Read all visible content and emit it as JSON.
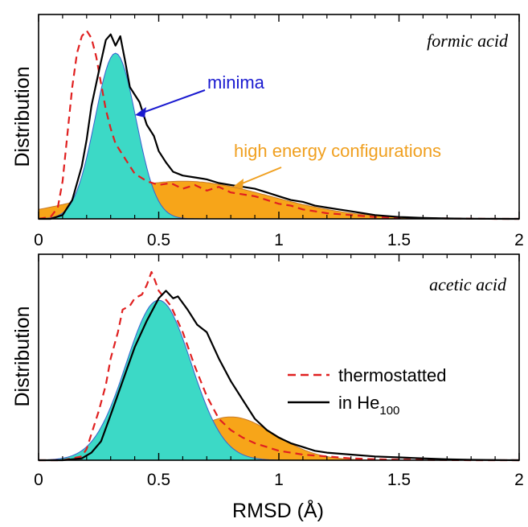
{
  "figure": {
    "xlabel": "RMSD (Å)",
    "colors": {
      "minima_fill": "#3cd9c6",
      "minima_line": "#3a5fd0",
      "high_energy_fill": "#f7a519",
      "high_energy_line": "#c87a2a",
      "thermostatted": "#e02020",
      "he100": "#000000",
      "minima_arrow": "#1a1ad0",
      "high_energy_arrow": "#f0a020"
    },
    "legend": {
      "thermostatted": "thermostatted",
      "he100_main": "in He",
      "he100_sub": "100"
    }
  },
  "chart_data": [
    {
      "type": "area",
      "panel_label": "formic acid",
      "ylabel": "Distribution",
      "xlabel": "",
      "xlim": [
        0,
        2
      ],
      "x_ticks": [
        "0",
        "0.5",
        "1",
        "1.5",
        "2"
      ],
      "y_ticks": "none",
      "grid": false,
      "annotations": [
        {
          "text": "minima"
        },
        {
          "text": "high energy configurations"
        }
      ],
      "series": [
        {
          "name": "minima",
          "kind": "gaussian-fill",
          "center": 0.32,
          "sigma": 0.085,
          "height": 0.88
        },
        {
          "name": "high energy configurations",
          "kind": "gaussian-fill",
          "center": 0.6,
          "sigma": 0.36,
          "height": 0.2
        },
        {
          "name": "thermostatted",
          "kind": "line",
          "x": [
            0.0,
            0.05,
            0.08,
            0.1,
            0.12,
            0.14,
            0.16,
            0.18,
            0.2,
            0.22,
            0.24,
            0.26,
            0.28,
            0.3,
            0.32,
            0.35,
            0.38,
            0.4,
            0.45,
            0.5,
            0.55,
            0.6,
            0.65,
            0.7,
            0.75,
            0.8,
            0.85,
            0.9,
            0.95,
            1.0,
            1.05,
            1.1,
            1.15,
            1.2,
            1.3,
            1.4,
            1.5,
            1.6,
            1.7,
            1.8,
            1.9,
            2.0
          ],
          "y": [
            0.0,
            0.01,
            0.06,
            0.2,
            0.45,
            0.7,
            0.88,
            0.97,
            1.0,
            0.96,
            0.86,
            0.72,
            0.58,
            0.48,
            0.4,
            0.34,
            0.28,
            0.24,
            0.2,
            0.18,
            0.19,
            0.16,
            0.18,
            0.15,
            0.17,
            0.14,
            0.13,
            0.12,
            0.1,
            0.08,
            0.07,
            0.05,
            0.04,
            0.03,
            0.02,
            0.01,
            0.005,
            0.003,
            0.002,
            0.001,
            0.0,
            0.0
          ]
        },
        {
          "name": "in He100",
          "kind": "line",
          "x": [
            0.0,
            0.05,
            0.1,
            0.14,
            0.18,
            0.2,
            0.22,
            0.25,
            0.28,
            0.3,
            0.32,
            0.34,
            0.36,
            0.38,
            0.4,
            0.42,
            0.45,
            0.48,
            0.5,
            0.53,
            0.56,
            0.6,
            0.65,
            0.7,
            0.75,
            0.8,
            0.85,
            0.9,
            0.95,
            1.0,
            1.05,
            1.1,
            1.15,
            1.2,
            1.25,
            1.3,
            1.35,
            1.4,
            1.5,
            1.6,
            1.7,
            1.8,
            2.0
          ],
          "y": [
            0.0,
            0.0,
            0.02,
            0.1,
            0.28,
            0.42,
            0.6,
            0.78,
            0.95,
            0.98,
            0.92,
            0.97,
            0.84,
            0.7,
            0.66,
            0.62,
            0.5,
            0.44,
            0.36,
            0.3,
            0.25,
            0.23,
            0.22,
            0.21,
            0.19,
            0.18,
            0.17,
            0.16,
            0.14,
            0.12,
            0.1,
            0.09,
            0.07,
            0.06,
            0.05,
            0.04,
            0.03,
            0.02,
            0.01,
            0.005,
            0.002,
            0.001,
            0.0
          ]
        }
      ]
    },
    {
      "type": "area",
      "panel_label": "acetic acid",
      "ylabel": "Distribution",
      "xlabel": "RMSD (Å)",
      "xlim": [
        0,
        2
      ],
      "x_ticks": [
        "0",
        "0.5",
        "1",
        "1.5",
        "2"
      ],
      "y_ticks": "none",
      "grid": false,
      "legend_placement": "right",
      "series": [
        {
          "name": "minima",
          "kind": "gaussian-fill",
          "center": 0.5,
          "sigma": 0.135,
          "height": 0.85
        },
        {
          "name": "high energy configurations",
          "kind": "gaussian-fill",
          "center": 0.8,
          "sigma": 0.18,
          "height": 0.23
        },
        {
          "name": "thermostatted",
          "kind": "line",
          "x": [
            0.0,
            0.1,
            0.18,
            0.2,
            0.22,
            0.25,
            0.28,
            0.3,
            0.33,
            0.35,
            0.38,
            0.4,
            0.43,
            0.45,
            0.47,
            0.48,
            0.5,
            0.55,
            0.6,
            0.65,
            0.7,
            0.75,
            0.8,
            0.85,
            0.9,
            0.95,
            1.0,
            1.05,
            1.1,
            1.2,
            1.3,
            1.4,
            1.5,
            1.6,
            1.7,
            1.8,
            1.9,
            2.0
          ],
          "y": [
            0.0,
            0.0,
            0.02,
            0.06,
            0.14,
            0.26,
            0.4,
            0.54,
            0.68,
            0.8,
            0.82,
            0.86,
            0.88,
            0.93,
            1.0,
            0.97,
            0.9,
            0.82,
            0.68,
            0.5,
            0.34,
            0.22,
            0.16,
            0.12,
            0.09,
            0.07,
            0.05,
            0.04,
            0.03,
            0.02,
            0.01,
            0.005,
            0.003,
            0.002,
            0.001,
            0.0,
            0.0,
            0.0
          ]
        },
        {
          "name": "in He100",
          "kind": "line",
          "x": [
            0.0,
            0.1,
            0.18,
            0.22,
            0.26,
            0.3,
            0.35,
            0.4,
            0.45,
            0.5,
            0.53,
            0.56,
            0.58,
            0.62,
            0.66,
            0.7,
            0.75,
            0.8,
            0.85,
            0.9,
            0.95,
            1.0,
            1.05,
            1.1,
            1.15,
            1.2,
            1.3,
            1.4,
            1.5,
            1.6,
            1.7,
            1.8,
            2.0
          ],
          "y": [
            0.0,
            0.0,
            0.01,
            0.04,
            0.1,
            0.24,
            0.42,
            0.6,
            0.74,
            0.86,
            0.9,
            0.86,
            0.87,
            0.8,
            0.72,
            0.68,
            0.54,
            0.42,
            0.32,
            0.22,
            0.16,
            0.12,
            0.09,
            0.07,
            0.05,
            0.04,
            0.03,
            0.02,
            0.015,
            0.01,
            0.005,
            0.002,
            0.0
          ]
        }
      ]
    }
  ]
}
